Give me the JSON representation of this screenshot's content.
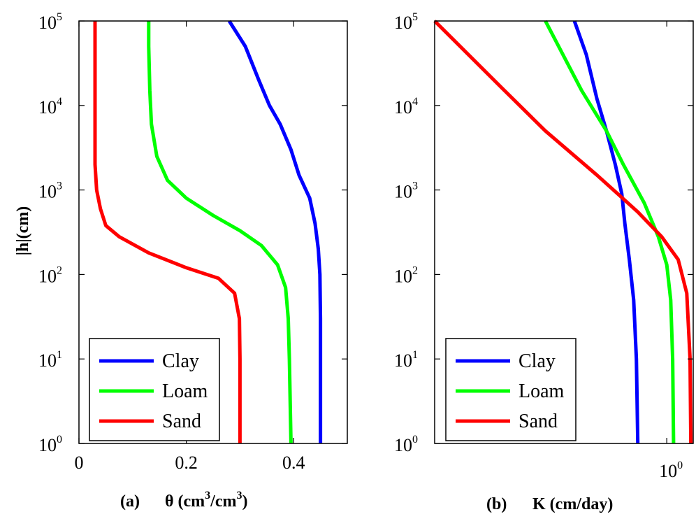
{
  "chart_data": [
    {
      "type": "line",
      "panel_label": "(a)",
      "xlabel_text": "θ (cm",
      "xlabel_sup1": "3",
      "xlabel_mid": "/cm",
      "xlabel_sup2": "3",
      "xlabel_close": ")",
      "ylabel": "|h|(cm)",
      "xlim": [
        0,
        0.5
      ],
      "ylim": [
        1,
        100000
      ],
      "yscale": "log",
      "x_ticks": [
        "0",
        "0.2",
        "0.4"
      ],
      "x_tick_values": [
        0,
        0.2,
        0.4
      ],
      "y_ticks": [
        {
          "base": "10",
          "exp": "0"
        },
        {
          "base": "10",
          "exp": "1"
        },
        {
          "base": "10",
          "exp": "2"
        },
        {
          "base": "10",
          "exp": "3"
        },
        {
          "base": "10",
          "exp": "4"
        },
        {
          "base": "10",
          "exp": "5"
        }
      ],
      "legend_position": "bottom-left",
      "series": [
        {
          "name": "Clay",
          "color": "#0000ff",
          "points": [
            [
              0.45,
              1
            ],
            [
              0.45,
              10
            ],
            [
              0.45,
              30
            ],
            [
              0.449,
              100
            ],
            [
              0.446,
              200
            ],
            [
              0.44,
              400
            ],
            [
              0.43,
              800
            ],
            [
              0.41,
              1500
            ],
            [
              0.395,
              3000
            ],
            [
              0.375,
              6000
            ],
            [
              0.355,
              10000
            ],
            [
              0.335,
              20000
            ],
            [
              0.31,
              50000
            ],
            [
              0.28,
              100000
            ]
          ]
        },
        {
          "name": "Loam",
          "color": "#00ff00",
          "points": [
            [
              0.395,
              1
            ],
            [
              0.392,
              10
            ],
            [
              0.39,
              30
            ],
            [
              0.385,
              70
            ],
            [
              0.37,
              130
            ],
            [
              0.34,
              220
            ],
            [
              0.3,
              330
            ],
            [
              0.25,
              500
            ],
            [
              0.2,
              800
            ],
            [
              0.165,
              1300
            ],
            [
              0.145,
              2500
            ],
            [
              0.135,
              6000
            ],
            [
              0.132,
              15000
            ],
            [
              0.13,
              50000
            ],
            [
              0.13,
              100000
            ]
          ]
        },
        {
          "name": "Sand",
          "color": "#ff0000",
          "points": [
            [
              0.3,
              1
            ],
            [
              0.3,
              10
            ],
            [
              0.299,
              30
            ],
            [
              0.29,
              60
            ],
            [
              0.26,
              90
            ],
            [
              0.2,
              120
            ],
            [
              0.13,
              180
            ],
            [
              0.075,
              280
            ],
            [
              0.05,
              380
            ],
            [
              0.04,
              600
            ],
            [
              0.033,
              1000
            ],
            [
              0.03,
              2000
            ],
            [
              0.03,
              10000
            ],
            [
              0.03,
              100000
            ]
          ]
        }
      ]
    },
    {
      "type": "line",
      "panel_label": "(b)",
      "xlabel": "K (cm/day)",
      "xscale": "log",
      "x_tick": {
        "base": "10",
        "exp": "0"
      },
      "xlim": [
        0.1,
        1.3
      ],
      "ylim": [
        1,
        100000
      ],
      "yscale": "log",
      "y_ticks": [
        {
          "base": "10",
          "exp": "0"
        },
        {
          "base": "10",
          "exp": "1"
        },
        {
          "base": "10",
          "exp": "2"
        },
        {
          "base": "10",
          "exp": "3"
        },
        {
          "base": "10",
          "exp": "4"
        },
        {
          "base": "10",
          "exp": "5"
        }
      ],
      "legend_position": "bottom-left",
      "series": [
        {
          "name": "Clay",
          "color": "#0000ff",
          "points": [
            [
              0.75,
              1
            ],
            [
              0.74,
              10
            ],
            [
              0.72,
              50
            ],
            [
              0.69,
              150
            ],
            [
              0.66,
              400
            ],
            [
              0.64,
              900
            ],
            [
              0.6,
              2000
            ],
            [
              0.55,
              5000
            ],
            [
              0.5,
              12000
            ],
            [
              0.45,
              40000
            ],
            [
              0.4,
              100000
            ]
          ]
        },
        {
          "name": "Loam",
          "color": "#00ff00",
          "points": [
            [
              1.07,
              1
            ],
            [
              1.06,
              10
            ],
            [
              1.04,
              50
            ],
            [
              1.0,
              130
            ],
            [
              0.92,
              280
            ],
            [
              0.8,
              700
            ],
            [
              0.65,
              2000
            ],
            [
              0.55,
              5000
            ],
            [
              0.43,
              15000
            ],
            [
              0.3,
              100000
            ]
          ]
        },
        {
          "name": "Sand",
          "color": "#ff0000",
          "points": [
            [
              1.27,
              1
            ],
            [
              1.26,
              10
            ],
            [
              1.22,
              60
            ],
            [
              1.12,
              150
            ],
            [
              0.95,
              280
            ],
            [
              0.75,
              550
            ],
            [
              0.5,
              1500
            ],
            [
              0.3,
              5000
            ],
            [
              0.2,
              15000
            ],
            [
              0.1,
              100000
            ]
          ]
        }
      ]
    }
  ]
}
